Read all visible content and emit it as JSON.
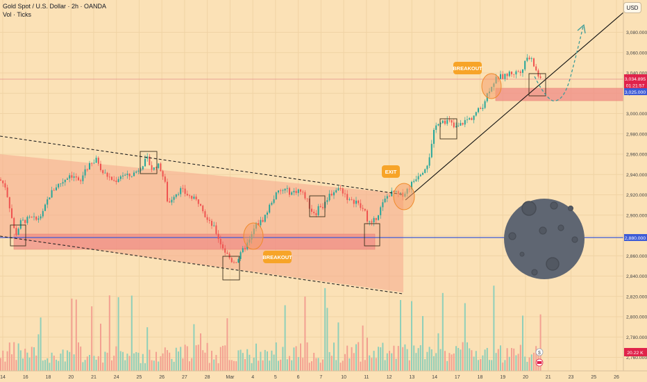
{
  "legend": {
    "title": "Gold Spot / U.S. Dollar · 2h · OANDA",
    "volume_label": "Vol · Ticks"
  },
  "currency_button": "USD",
  "price_badges": {
    "last_price": "3,034.895",
    "countdown": "01:21:57",
    "zone_level": "3,025.000",
    "support_level": "2,880.000",
    "volume_value": "20.22 K"
  },
  "annotations": {
    "breakout_low": "BREAKOUT",
    "exit": "EXIT",
    "breakout_high": "BREAKOUT"
  },
  "colors": {
    "background": "#fbe1b6",
    "channel_fill": "#f6a98d",
    "zone_fill": "#f08c86",
    "support_line": "#3d5bd6",
    "bull": "#26a69a",
    "bear": "#ef5350",
    "vol_bull": "#8fcfb9",
    "vol_bear": "#f3a091",
    "label_orange": "#f7a428",
    "last_price_red": "#e0224a",
    "moon": "#5f6672",
    "arrow": "#3c9c98"
  },
  "chart_data": {
    "type": "candlestick",
    "title": "Gold Spot / U.S. Dollar · 2h · OANDA",
    "y_axis": {
      "ticks": [
        "3,080.000",
        "3,060.000",
        "3,040.000",
        "3,020.000",
        "3,000.000",
        "2,980.000",
        "2,960.000",
        "2,940.000",
        "2,920.000",
        "2,900.000",
        "2,880.000",
        "2,860.000",
        "2,840.000",
        "2,820.000",
        "2,800.000",
        "2,780.000",
        "2,760.000"
      ],
      "range": [
        2755,
        3095
      ]
    },
    "x_axis": {
      "ticks": [
        "14",
        "16",
        "18",
        "20",
        "21",
        "24",
        "25",
        "26",
        "27",
        "28",
        "Mar",
        "4",
        "5",
        "6",
        "7",
        "10",
        "11",
        "12",
        "13",
        "14",
        "17",
        "18",
        "19",
        "20",
        "21",
        "23",
        "25",
        "26"
      ]
    },
    "price_path": [
      [
        0,
        2935
      ],
      [
        8,
        2928
      ],
      [
        14,
        2908
      ],
      [
        22,
        2880
      ],
      [
        30,
        2893
      ],
      [
        45,
        2897
      ],
      [
        52,
        2895
      ],
      [
        62,
        2902
      ],
      [
        70,
        2918
      ],
      [
        80,
        2928
      ],
      [
        90,
        2933
      ],
      [
        100,
        2940
      ],
      [
        108,
        2938
      ],
      [
        115,
        2930
      ],
      [
        122,
        2945
      ],
      [
        132,
        2950
      ],
      [
        140,
        2955
      ],
      [
        148,
        2942
      ],
      [
        156,
        2938
      ],
      [
        165,
        2933
      ],
      [
        175,
        2940
      ],
      [
        185,
        2938
      ],
      [
        195,
        2942
      ],
      [
        205,
        2950
      ],
      [
        212,
        2955
      ],
      [
        220,
        2944
      ],
      [
        226,
        2950
      ],
      [
        232,
        2945
      ],
      [
        238,
        2930
      ],
      [
        242,
        2910
      ],
      [
        250,
        2920
      ],
      [
        260,
        2925
      ],
      [
        270,
        2920
      ],
      [
        280,
        2915
      ],
      [
        290,
        2912
      ],
      [
        295,
        2900
      ],
      [
        300,
        2893
      ],
      [
        306,
        2890
      ],
      [
        312,
        2882
      ],
      [
        318,
        2872
      ],
      [
        326,
        2862
      ],
      [
        334,
        2855
      ],
      [
        340,
        2855
      ],
      [
        346,
        2860
      ],
      [
        352,
        2868
      ],
      [
        360,
        2875
      ],
      [
        368,
        2890
      ],
      [
        375,
        2893
      ],
      [
        380,
        2897
      ],
      [
        386,
        2905
      ],
      [
        392,
        2915
      ],
      [
        400,
        2922
      ],
      [
        410,
        2925
      ],
      [
        420,
        2922
      ],
      [
        430,
        2925
      ],
      [
        440,
        2918
      ],
      [
        448,
        2905
      ],
      [
        455,
        2902
      ],
      [
        460,
        2910
      ],
      [
        466,
        2908
      ],
      [
        472,
        2918
      ],
      [
        478,
        2922
      ],
      [
        484,
        2925
      ],
      [
        490,
        2926
      ],
      [
        496,
        2922
      ],
      [
        505,
        2912
      ],
      [
        512,
        2915
      ],
      [
        518,
        2908
      ],
      [
        524,
        2905
      ],
      [
        530,
        2895
      ],
      [
        535,
        2890
      ],
      [
        541,
        2897
      ],
      [
        547,
        2905
      ],
      [
        553,
        2913
      ],
      [
        560,
        2921
      ],
      [
        568,
        2922
      ],
      [
        576,
        2919
      ],
      [
        584,
        2923
      ],
      [
        590,
        2928
      ],
      [
        596,
        2934
      ],
      [
        602,
        2940
      ],
      [
        610,
        2945
      ],
      [
        616,
        2952
      ],
      [
        621,
        2965
      ],
      [
        626,
        2985
      ],
      [
        632,
        2993
      ],
      [
        640,
        2993
      ],
      [
        648,
        2992
      ],
      [
        655,
        2985
      ],
      [
        662,
        2988
      ],
      [
        670,
        2993
      ],
      [
        678,
        2995
      ],
      [
        686,
        3001
      ],
      [
        694,
        3006
      ],
      [
        700,
        3016
      ],
      [
        706,
        3026
      ],
      [
        712,
        3032
      ],
      [
        718,
        3036
      ],
      [
        726,
        3036
      ],
      [
        734,
        3040
      ],
      [
        742,
        3040
      ],
      [
        750,
        3043
      ],
      [
        756,
        3049
      ],
      [
        760,
        3056
      ],
      [
        765,
        3053
      ],
      [
        770,
        3046
      ],
      [
        775,
        3038
      ],
      [
        780,
        3030
      ]
    ],
    "volume_scale_max": 100
  }
}
